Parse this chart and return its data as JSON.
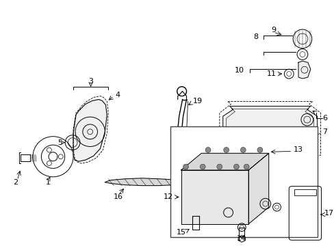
{
  "bg_color": "#ffffff",
  "line_color": "#000000",
  "label_color": "#000000",
  "lw": 0.7
}
